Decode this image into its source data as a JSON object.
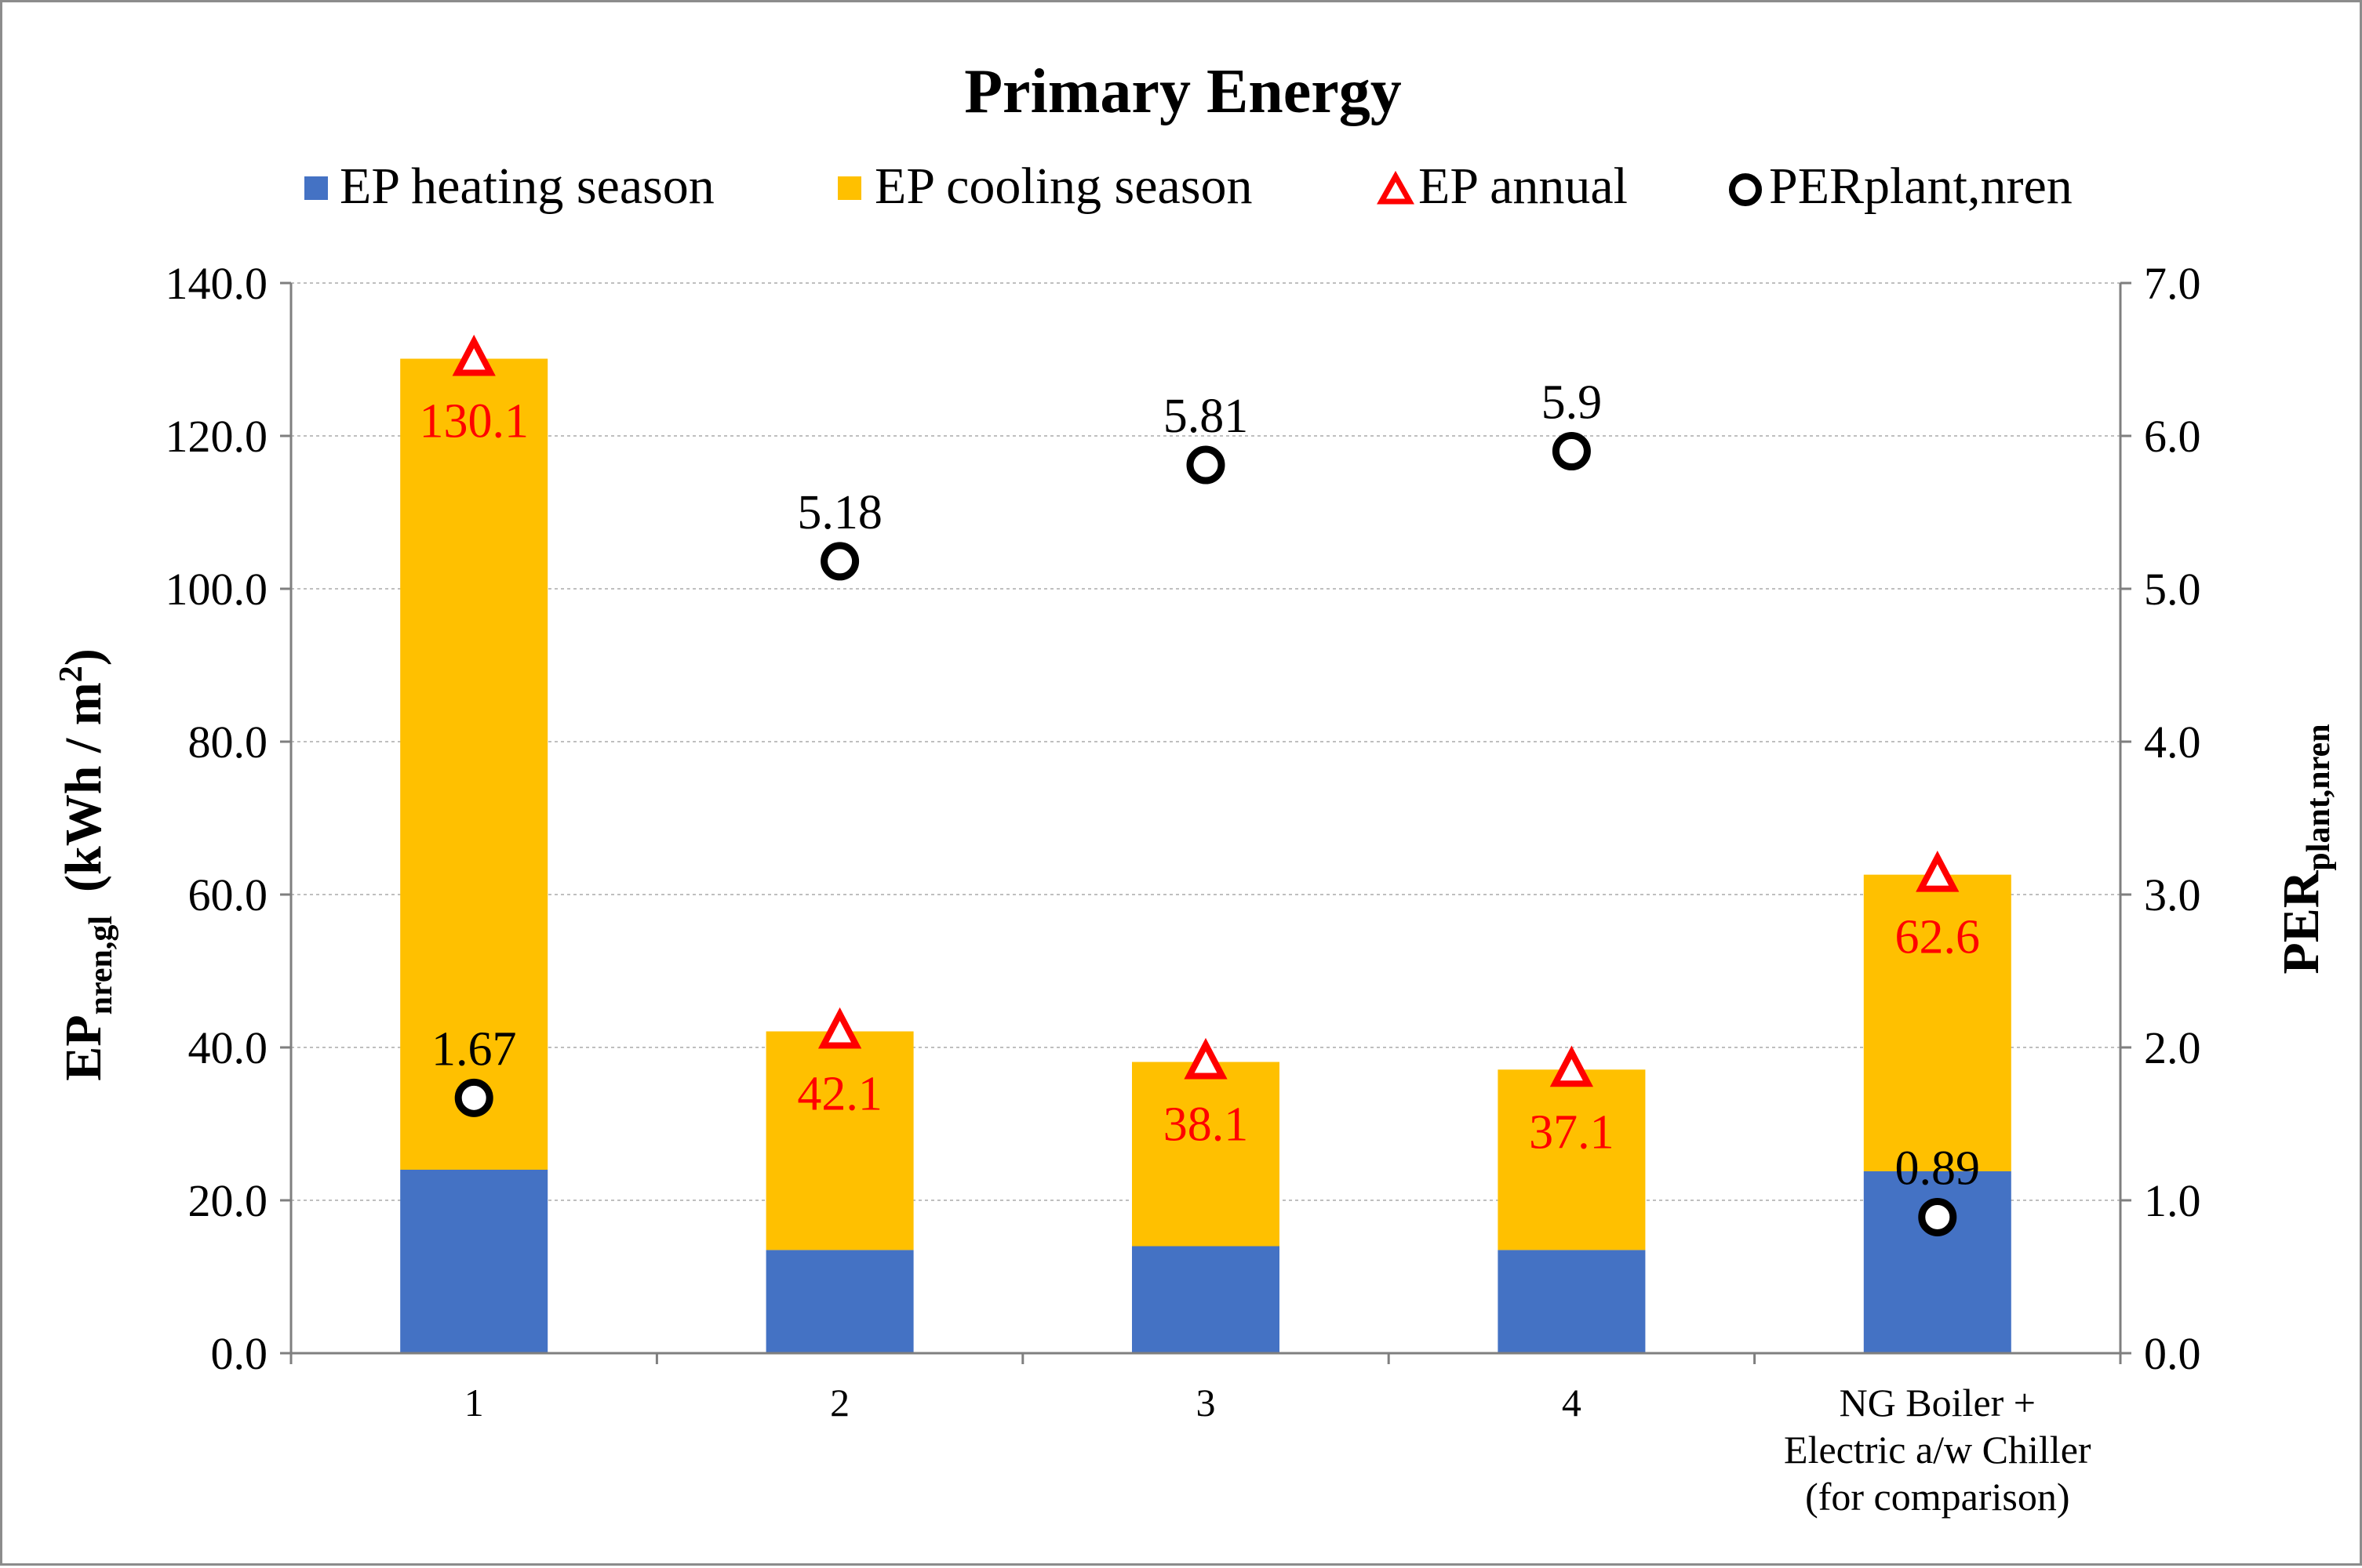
{
  "chart_data": {
    "type": "bar",
    "title": "Primary Energy",
    "categories": [
      "1",
      "2",
      "3",
      "4",
      "NG Boiler +\nElectric a/w Chiller\n(for comparison)"
    ],
    "series": [
      {
        "name": "EP heating season",
        "kind": "stacked-bar",
        "color": "#4472C4",
        "values": [
          24.0,
          13.5,
          14.0,
          13.5,
          23.8
        ]
      },
      {
        "name": "EP cooling season",
        "kind": "stacked-bar",
        "color": "#FFC000",
        "values": [
          106.1,
          28.6,
          24.1,
          23.6,
          38.8
        ]
      },
      {
        "name": "EP annual",
        "kind": "marker-triangle",
        "color": "#FF0000",
        "axis": "left",
        "values": [
          130.1,
          42.1,
          38.1,
          37.1,
          62.6
        ],
        "labels": [
          "130.1",
          "42.1",
          "38.1",
          "37.1",
          "62.6"
        ]
      },
      {
        "name": "PERplant,nren",
        "kind": "marker-circle",
        "color": "#000000",
        "axis": "right",
        "values": [
          1.67,
          5.18,
          5.81,
          5.9,
          0.89
        ],
        "labels": [
          "1.67",
          "5.18",
          "5.81",
          "5.9",
          "0.89"
        ]
      }
    ],
    "y_left": {
      "label_main": "EP",
      "label_sub": "nren,gl",
      "label_unit": "(kWh / m",
      "label_sup": "2",
      "label_close": ")",
      "lim": [
        0,
        140
      ],
      "ticks": [
        "0.0",
        "20.0",
        "40.0",
        "60.0",
        "80.0",
        "100.0",
        "120.0",
        "140.0"
      ]
    },
    "y_right": {
      "label_main": "PER",
      "label_sub": "plant,nren",
      "lim": [
        0,
        7
      ],
      "ticks": [
        "0.0",
        "1.0",
        "2.0",
        "3.0",
        "4.0",
        "5.0",
        "6.0",
        "7.0"
      ]
    },
    "grid": true,
    "legend_position": "top"
  }
}
